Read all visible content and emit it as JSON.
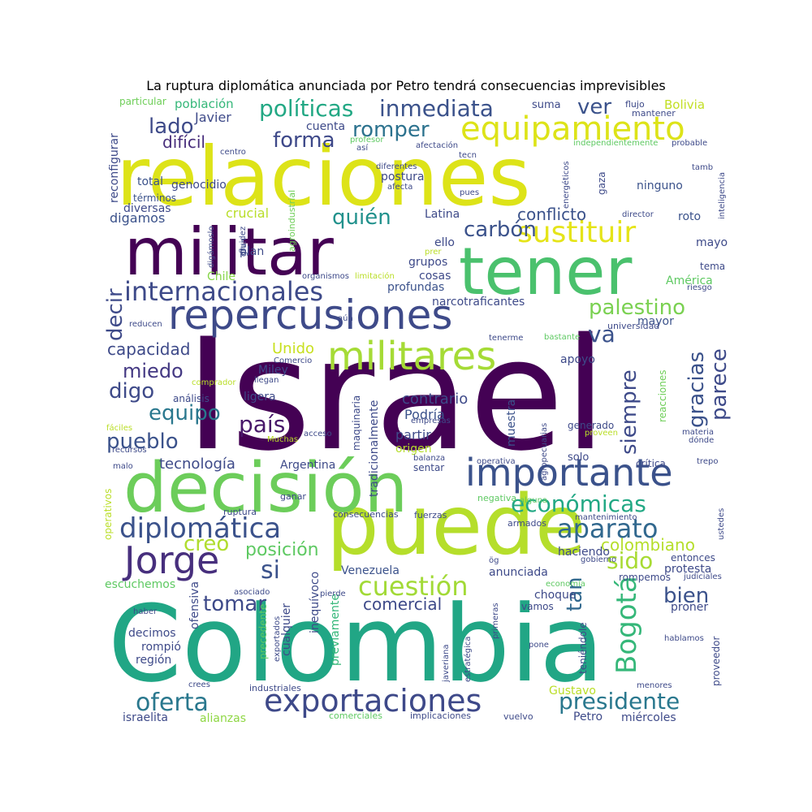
{
  "title": "La ruptura diplomática anunciada por Petro tendrá consecuencias imprevisibles",
  "palette": {
    "purple": "#440154",
    "indigo": "#3b528b",
    "blue": "#31688e",
    "teal": "#21908d",
    "green": "#35b779",
    "lime": "#8fd744",
    "yellow": "#d8e219",
    "lightgreen": "#5ec962"
  },
  "words": [
    {
      "text": "Israel",
      "color": "#440154"
    },
    {
      "text": "Colombia",
      "color": "#21a685"
    },
    {
      "text": "relaciones",
      "color": "#dde318"
    },
    {
      "text": "puede",
      "color": "#b5de2b"
    },
    {
      "text": "decisión",
      "color": "#6ccd5a"
    },
    {
      "text": "militar",
      "color": "#440154"
    },
    {
      "text": "tener",
      "color": "#4ac16d"
    },
    {
      "text": "equipamiento",
      "color": "#dde318"
    },
    {
      "text": "repercusiones",
      "color": "#3e4a89"
    },
    {
      "text": "militares",
      "color": "#a5db36"
    },
    {
      "text": "importante",
      "color": "#3b528b"
    },
    {
      "text": "exportaciones",
      "color": "#3e4989"
    },
    {
      "text": "Jorge",
      "color": "#472f7d"
    },
    {
      "text": "sustituir",
      "color": "#e5e419"
    },
    {
      "text": "internacionales",
      "color": "#3e4a89"
    },
    {
      "text": "diplomática",
      "color": "#3b528b"
    },
    {
      "text": "Bogotá",
      "color": "#35b779"
    },
    {
      "text": "cuestión",
      "color": "#a2da37"
    },
    {
      "text": "aparato",
      "color": "#31688e"
    },
    {
      "text": "oferta",
      "color": "#2a788e"
    },
    {
      "text": "políticas",
      "color": "#22a884"
    },
    {
      "text": "inmediata",
      "color": "#3b528b"
    },
    {
      "text": "romper",
      "color": "#2c728e"
    },
    {
      "text": "forma",
      "color": "#3e4989"
    },
    {
      "text": "lado",
      "color": "#3e4a89"
    },
    {
      "text": "país",
      "color": "#48186a"
    },
    {
      "text": "presidente",
      "color": "#2a788e"
    },
    {
      "text": "económicas",
      "color": "#22a884"
    },
    {
      "text": "carbón",
      "color": "#3b528b"
    },
    {
      "text": "quién",
      "color": "#21918c"
    },
    {
      "text": "palestino",
      "color": "#7ad151"
    },
    {
      "text": "siempre",
      "color": "#3e4a89"
    },
    {
      "text": "gracias",
      "color": "#3b528b"
    },
    {
      "text": "parece",
      "color": "#3e4a89"
    },
    {
      "text": "si",
      "color": "#3b528b"
    },
    {
      "text": "sido",
      "color": "#a8db34"
    },
    {
      "text": "tan",
      "color": "#31688e"
    },
    {
      "text": "bien",
      "color": "#3b528b"
    },
    {
      "text": "va",
      "color": "#3b528b"
    },
    {
      "text": "ver",
      "color": "#3b528b"
    },
    {
      "text": "decir",
      "color": "#3e4a89"
    },
    {
      "text": "creo",
      "color": "#b0dd2f"
    },
    {
      "text": "tomar",
      "color": "#3e4a89"
    },
    {
      "text": "posición",
      "color": "#5ec962"
    },
    {
      "text": "digo",
      "color": "#3e4a89"
    },
    {
      "text": "equipo",
      "color": "#2a788e"
    },
    {
      "text": "pueblo",
      "color": "#3b528b"
    },
    {
      "text": "miedo",
      "color": "#443983"
    },
    {
      "text": "capacidad",
      "color": "#3e4a89"
    },
    {
      "text": "conflicto",
      "color": "#3b528b"
    },
    {
      "text": "comercial",
      "color": "#3e4a89"
    },
    {
      "text": "colombiano",
      "color": "#b5de2b"
    },
    {
      "text": "tecnología",
      "color": "#3e4a89"
    },
    {
      "text": "contrario",
      "color": "#3e4a89"
    },
    {
      "text": "difícil",
      "color": "#472d7b"
    },
    {
      "text": "Javier",
      "color": "#3e4a89"
    },
    {
      "text": "población",
      "color": "#35b779"
    },
    {
      "text": "reconfigurar",
      "color": "#3e4a89"
    },
    {
      "text": "particular",
      "color": "#6ece58"
    },
    {
      "text": "Bolivia",
      "color": "#c2df23"
    },
    {
      "text": "suma",
      "color": "#3e4a89"
    },
    {
      "text": "flujo",
      "color": "#3e4a89"
    },
    {
      "text": "mantener",
      "color": "#3e4a89"
    },
    {
      "text": "cuenta",
      "color": "#3e4a89"
    },
    {
      "text": "total",
      "color": "#3b528b"
    },
    {
      "text": "genocidio",
      "color": "#3e4a89"
    },
    {
      "text": "términos",
      "color": "#3b528b"
    },
    {
      "text": "diversas",
      "color": "#3e4a89"
    },
    {
      "text": "digamos",
      "color": "#3b528b"
    },
    {
      "text": "crucial",
      "color": "#b8de29"
    },
    {
      "text": "postura",
      "color": "#3e4a89"
    },
    {
      "text": "ninguno",
      "color": "#3b528b"
    },
    {
      "text": "Latina",
      "color": "#3e4a89"
    },
    {
      "text": "roto",
      "color": "#3b528b"
    },
    {
      "text": "mayo",
      "color": "#3e4a89"
    },
    {
      "text": "tema",
      "color": "#3e4a89"
    },
    {
      "text": "América",
      "color": "#5ec962"
    },
    {
      "text": "plan",
      "color": "#3e4a89"
    },
    {
      "text": "Chile",
      "color": "#86d549"
    },
    {
      "text": "ello",
      "color": "#3e4a89"
    },
    {
      "text": "grupos",
      "color": "#3e4a89"
    },
    {
      "text": "cosas",
      "color": "#3e4a89"
    },
    {
      "text": "profundas",
      "color": "#3b528b"
    },
    {
      "text": "narcotraficantes",
      "color": "#3e4a89"
    },
    {
      "text": "mayor",
      "color": "#3b528b"
    },
    {
      "text": "universidad",
      "color": "#3e4a89"
    },
    {
      "text": "Unido",
      "color": "#c8e020"
    },
    {
      "text": "Miley",
      "color": "#3e4a89"
    },
    {
      "text": "apoyo",
      "color": "#3e4a89"
    },
    {
      "text": "ligera",
      "color": "#3e4a89"
    },
    {
      "text": "análisis",
      "color": "#3e4a89"
    },
    {
      "text": "Podría",
      "color": "#3b528b"
    },
    {
      "text": "partir",
      "color": "#3e4a89"
    },
    {
      "text": "origen",
      "color": "#b5de2b"
    },
    {
      "text": "sentar",
      "color": "#3e4a89"
    },
    {
      "text": "Argentina",
      "color": "#3e4a89"
    },
    {
      "text": "generado",
      "color": "#3e4a89"
    },
    {
      "text": "solo",
      "color": "#3e4a89"
    },
    {
      "text": "crítica",
      "color": "#3e4a89"
    },
    {
      "text": "muestra",
      "color": "#3b528b"
    },
    {
      "text": "tradicionalmente",
      "color": "#3e4a89"
    },
    {
      "text": "maquinaria",
      "color": "#3e4a89"
    },
    {
      "text": "reacciones",
      "color": "#6ece58"
    },
    {
      "text": "Venezuela",
      "color": "#3b528b"
    },
    {
      "text": "haciendo",
      "color": "#3e4a89"
    },
    {
      "text": "anunciada",
      "color": "#3e4a89"
    },
    {
      "text": "protesta",
      "color": "#3e4a89"
    },
    {
      "text": "entonces",
      "color": "#3e4a89"
    },
    {
      "text": "escuchemos",
      "color": "#5ec962"
    },
    {
      "text": "rompemos",
      "color": "#3e4a89"
    },
    {
      "text": "ofensiva",
      "color": "#3e4a89"
    },
    {
      "text": "inequívoco",
      "color": "#3e4a89"
    },
    {
      "text": "choque",
      "color": "#3e4a89"
    },
    {
      "text": "vamos",
      "color": "#3e4a89"
    },
    {
      "text": "proner",
      "color": "#3e4a89"
    },
    {
      "text": "decimos",
      "color": "#3e4a89"
    },
    {
      "text": "rompió",
      "color": "#3e4a89"
    },
    {
      "text": "región",
      "color": "#3e4a89"
    },
    {
      "text": "proveedor",
      "color": "#3e4a89"
    },
    {
      "text": "Gustavo",
      "color": "#bade28"
    },
    {
      "text": "Petro",
      "color": "#3e4a89"
    },
    {
      "text": "miércoles",
      "color": "#3e4a89"
    },
    {
      "text": "israelita",
      "color": "#3e4a89"
    },
    {
      "text": "alianzas",
      "color": "#8fd744"
    },
    {
      "text": "previamente",
      "color": "#35b779"
    },
    {
      "text": "cualquier",
      "color": "#3e4a89"
    },
    {
      "text": "precedente",
      "color": "#5ec962"
    },
    {
      "text": "industriales",
      "color": "#3e4a89"
    },
    {
      "text": "implicaciones",
      "color": "#3e4a89"
    },
    {
      "text": "comerciales",
      "color": "#5ec962"
    },
    {
      "text": "vuelvo",
      "color": "#3e4a89"
    },
    {
      "text": "agroindustrial",
      "color": "#6ece58"
    },
    {
      "text": "gaza",
      "color": "#3e4a89"
    },
    {
      "text": "energéticos",
      "color": "#3e4a89"
    },
    {
      "text": "teniéndole",
      "color": "#3e4a89"
    },
    {
      "text": "javeriana",
      "color": "#3e4a89"
    },
    {
      "text": "estratégica",
      "color": "#3e4a89"
    },
    {
      "text": "primeras",
      "color": "#3e4a89"
    },
    {
      "text": "consecuencias",
      "color": "#3e4a89"
    },
    {
      "text": "fuerzas",
      "color": "#3e4a89"
    },
    {
      "text": "armados",
      "color": "#3e4a89"
    },
    {
      "text": "mantenimiento",
      "color": "#3e4a89"
    },
    {
      "text": "ruptura",
      "color": "#3e4a89"
    },
    {
      "text": "ganar",
      "color": "#3e4a89"
    },
    {
      "text": "operativos",
      "color": "#bade28"
    },
    {
      "text": "negativa",
      "color": "#5ec962"
    },
    {
      "text": "alguna",
      "color": "#5ec962"
    },
    {
      "text": "operativa",
      "color": "#3e4a89"
    },
    {
      "text": "balanza",
      "color": "#3e4a89"
    },
    {
      "text": "trepo",
      "color": "#3e4a89"
    },
    {
      "text": "centro",
      "color": "#3e4a89"
    },
    {
      "text": "así",
      "color": "#3e4a89"
    },
    {
      "text": "profesor",
      "color": "#5ec962"
    },
    {
      "text": "diferentes",
      "color": "#3e4a89"
    },
    {
      "text": "afecta",
      "color": "#3e4a89"
    },
    {
      "text": "afectación",
      "color": "#3e4a89"
    },
    {
      "text": "tecn",
      "color": "#3e4a89"
    },
    {
      "text": "pues",
      "color": "#3e4a89"
    },
    {
      "text": "director",
      "color": "#3e4a89"
    },
    {
      "text": "independientemente",
      "color": "#5ec962"
    },
    {
      "text": "probable",
      "color": "#3e4a89"
    },
    {
      "text": "tamb",
      "color": "#3e4a89"
    },
    {
      "text": "inteligencia",
      "color": "#3e4a89"
    },
    {
      "text": "fluidez",
      "color": "#3e4a89"
    },
    {
      "text": "digámoslo",
      "color": "#3e4a89"
    },
    {
      "text": "gran",
      "color": "#3e4a89"
    },
    {
      "text": "organismos",
      "color": "#3e4a89"
    },
    {
      "text": "limitación",
      "color": "#bade28"
    },
    {
      "text": "riesgo",
      "color": "#3e4a89"
    },
    {
      "text": "reducen",
      "color": "#3e4a89"
    },
    {
      "text": "aún",
      "color": "#3e4a89"
    },
    {
      "text": "tenerme",
      "color": "#3e4a89"
    },
    {
      "text": "bastante",
      "color": "#5ec962"
    },
    {
      "text": "Comercio",
      "color": "#3e4a89"
    },
    {
      "text": "comprador",
      "color": "#bade28"
    },
    {
      "text": "llegan",
      "color": "#3e4a89"
    },
    {
      "text": "fáciles",
      "color": "#bade28"
    },
    {
      "text": "recursos",
      "color": "#3e4a89"
    },
    {
      "text": "acceso",
      "color": "#3e4a89"
    },
    {
      "text": "Muchas",
      "color": "#bade28"
    },
    {
      "text": "empresas",
      "color": "#3e4a89"
    },
    {
      "text": "agropecuarias",
      "color": "#3e4a89"
    },
    {
      "text": "proveen",
      "color": "#bade28"
    },
    {
      "text": "materia",
      "color": "#3e4a89"
    },
    {
      "text": "dónde",
      "color": "#3e4a89"
    },
    {
      "text": "malo",
      "color": "#3e4a89"
    },
    {
      "text": "ustedes",
      "color": "#3e4a89"
    },
    {
      "text": "gobierno",
      "color": "#3e4a89"
    },
    {
      "text": "judiciales",
      "color": "#3e4a89"
    },
    {
      "text": "economía",
      "color": "#5ec962"
    },
    {
      "text": "asociado",
      "color": "#3e4a89"
    },
    {
      "text": "pierde",
      "color": "#3e4a89"
    },
    {
      "text": "haber",
      "color": "#3e4a89"
    },
    {
      "text": "hablamos",
      "color": "#3e4a89"
    },
    {
      "text": "pone",
      "color": "#3e4a89"
    },
    {
      "text": "crees",
      "color": "#3e4a89"
    },
    {
      "text": "menores",
      "color": "#3e4a89"
    },
    {
      "text": "exportados",
      "color": "#3e4a89"
    },
    {
      "text": "ög",
      "color": "#3e4a89"
    },
    {
      "text": "prer",
      "color": "#bade28"
    }
  ]
}
